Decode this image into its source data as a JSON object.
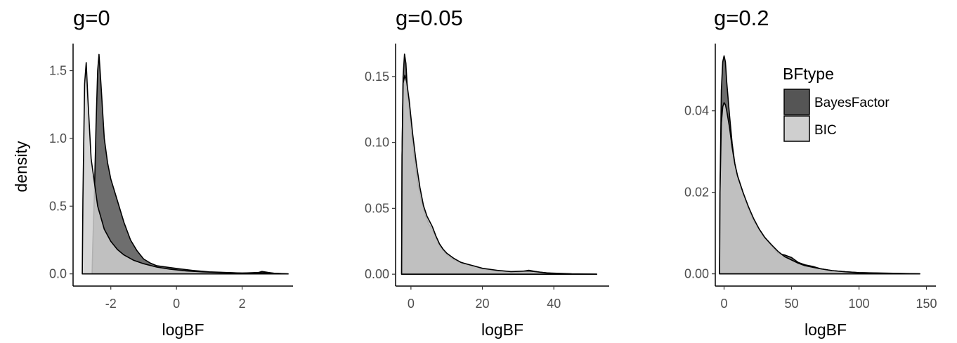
{
  "colors": {
    "BayesFactor": "#555555",
    "BIC": "#cfcfcf",
    "outline": "#000000"
  },
  "legend": {
    "title": "BFtype",
    "placement": "right",
    "items": [
      {
        "label": "BayesFactor",
        "color": "#555555"
      },
      {
        "label": "BIC",
        "color": "#cfcfcf"
      }
    ]
  },
  "chart_data": [
    {
      "type": "area",
      "title": "g=0",
      "xlabel": "logBF",
      "ylabel": "density",
      "xlim": [
        -3.15,
        3.55
      ],
      "ylim": [
        -0.09,
        1.7
      ],
      "xticks": [
        -2,
        0,
        2
      ],
      "xtick_labels": [
        "-2",
        "0",
        "2"
      ],
      "yticks": [
        0.0,
        0.5,
        1.0,
        1.5
      ],
      "ytick_labels": [
        "0.0",
        "0.5",
        "1.0",
        "1.5"
      ],
      "series": [
        {
          "name": "BayesFactor",
          "x": [
            -2.57,
            -2.55,
            -2.5,
            -2.45,
            -2.4,
            -2.36,
            -2.3,
            -2.2,
            -2.1,
            -2.0,
            -1.8,
            -1.6,
            -1.4,
            -1.2,
            -1.0,
            -0.8,
            -0.6,
            -0.3,
            0,
            0.5,
            1.0,
            1.5,
            2.0,
            2.5,
            2.6,
            2.8,
            3.0,
            3.4
          ],
          "y": [
            0,
            0.2,
            0.6,
            1.1,
            1.5,
            1.62,
            1.4,
            1.0,
            0.82,
            0.7,
            0.54,
            0.38,
            0.25,
            0.17,
            0.11,
            0.08,
            0.06,
            0.05,
            0.04,
            0.025,
            0.015,
            0.01,
            0.006,
            0.01,
            0.018,
            0.01,
            0.004,
            0.0
          ]
        },
        {
          "name": "BIC",
          "x": [
            -2.87,
            -2.85,
            -2.8,
            -2.75,
            -2.7,
            -2.6,
            -2.4,
            -2.2,
            -2.0,
            -1.8,
            -1.6,
            -1.3,
            -1.0,
            -0.6,
            -0.2,
            0.3,
            0.8,
            1.3,
            2.0,
            2.6,
            3.4
          ],
          "y": [
            0,
            0.55,
            1.4,
            1.56,
            1.3,
            0.85,
            0.5,
            0.33,
            0.24,
            0.18,
            0.14,
            0.1,
            0.075,
            0.05,
            0.035,
            0.022,
            0.015,
            0.01,
            0.006,
            0.008,
            0.0
          ]
        }
      ]
    },
    {
      "type": "area",
      "title": "g=0.05",
      "xlabel": "logBF",
      "ylabel": "",
      "xlim": [
        -4.3,
        55.5
      ],
      "ylim": [
        -0.009,
        0.175
      ],
      "xticks": [
        0,
        20,
        40
      ],
      "xtick_labels": [
        "0",
        "20",
        "40"
      ],
      "yticks": [
        0.0,
        0.05,
        0.1,
        0.15
      ],
      "ytick_labels": [
        "0.00",
        "0.05",
        "0.10",
        "0.15"
      ],
      "series": [
        {
          "name": "BayesFactor",
          "x": [
            -2.6,
            -2.5,
            -2.2,
            -1.8,
            -1.4,
            -1.0,
            0,
            1,
            2,
            3,
            4,
            5,
            6,
            7,
            8,
            9,
            10,
            12,
            14,
            16,
            18,
            20,
            22,
            26,
            30,
            33,
            36,
            40,
            45,
            52
          ],
          "y": [
            0,
            0.09,
            0.15,
            0.167,
            0.16,
            0.14,
            0.112,
            0.087,
            0.068,
            0.055,
            0.045,
            0.038,
            0.034,
            0.028,
            0.022,
            0.018,
            0.015,
            0.011,
            0.009,
            0.007,
            0.006,
            0.004,
            0.003,
            0.002,
            0.0015,
            0.003,
            0.0015,
            0.0005,
            0.0002,
            0
          ]
        },
        {
          "name": "BIC",
          "x": [
            -2.6,
            -2.5,
            -2.2,
            -1.7,
            -1.2,
            -0.5,
            0.5,
            1.5,
            2.5,
            3.5,
            4.5,
            6,
            7,
            8,
            9,
            10,
            12,
            14,
            16,
            18,
            20,
            24,
            28,
            33,
            38,
            45,
            52
          ],
          "y": [
            0,
            0.09,
            0.145,
            0.151,
            0.146,
            0.132,
            0.106,
            0.084,
            0.066,
            0.052,
            0.044,
            0.036,
            0.029,
            0.023,
            0.019,
            0.016,
            0.012,
            0.009,
            0.0075,
            0.006,
            0.0045,
            0.003,
            0.002,
            0.0025,
            0.001,
            0.0003,
            0
          ]
        }
      ]
    },
    {
      "type": "area",
      "title": "g=0.2",
      "xlabel": "logBF",
      "ylabel": "",
      "xlim": [
        -6.5,
        157
      ],
      "ylim": [
        -0.003,
        0.0565
      ],
      "xticks": [
        0,
        50,
        100,
        150
      ],
      "xtick_labels": [
        "0",
        "50",
        "100",
        "150"
      ],
      "yticks": [
        0.0,
        0.02,
        0.04
      ],
      "ytick_labels": [
        "0.00",
        "0.02",
        "0.04"
      ],
      "series": [
        {
          "name": "BayesFactor",
          "x": [
            -3.3,
            -3,
            -2,
            -1,
            0,
            1,
            2,
            4,
            6,
            8,
            10,
            14,
            18,
            22,
            26,
            30,
            35,
            40,
            45,
            50,
            55,
            60,
            66,
            72,
            80,
            90,
            100,
            110,
            120,
            135,
            145
          ],
          "y": [
            0,
            0.02,
            0.045,
            0.052,
            0.0535,
            0.052,
            0.047,
            0.039,
            0.032,
            0.027,
            0.024,
            0.02,
            0.016,
            0.013,
            0.011,
            0.009,
            0.007,
            0.005,
            0.0046,
            0.004,
            0.0028,
            0.0022,
            0.0018,
            0.0012,
            0.0008,
            0.0005,
            0.0003,
            0.0002,
            0.0001,
            5e-05,
            0
          ]
        },
        {
          "name": "BIC",
          "x": [
            -3.3,
            -3,
            -2,
            -1,
            0,
            1,
            2,
            4,
            6,
            8,
            10,
            14,
            18,
            22,
            26,
            30,
            35,
            40,
            45,
            50,
            55,
            60,
            66,
            72,
            80,
            90,
            100,
            115,
            130,
            145
          ],
          "y": [
            0,
            0.02,
            0.037,
            0.041,
            0.042,
            0.0415,
            0.04,
            0.036,
            0.031,
            0.027,
            0.024,
            0.02,
            0.0165,
            0.0135,
            0.011,
            0.009,
            0.0072,
            0.0055,
            0.0042,
            0.0034,
            0.0026,
            0.002,
            0.0016,
            0.0012,
            0.0008,
            0.0005,
            0.0003,
            0.0002,
            0.0001,
            0
          ]
        }
      ]
    }
  ]
}
